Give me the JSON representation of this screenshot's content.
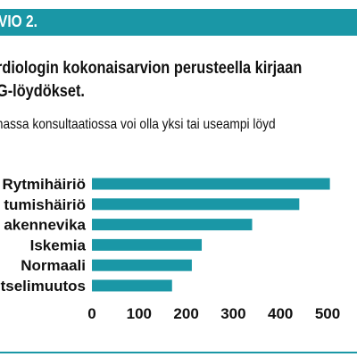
{
  "header": {
    "label": "VIO 2."
  },
  "title_lines": [
    "rdiologin kokonaisarvion perusteella kirjaan",
    "G-löydökset."
  ],
  "subtitle": "massa konsultaatiossa voi olla yksi tai useampi löyd",
  "colors": {
    "accent": "#1a97a6",
    "bar": "#1a97a6",
    "text": "#111111"
  },
  "chart_data": {
    "type": "bar",
    "orientation": "horizontal",
    "categories": [
      "Rytmihäiriö",
      "tumishäiriö",
      "akennevika",
      "Iskemia",
      "Normaali",
      "tselimuutos"
    ],
    "values": [
      505,
      440,
      340,
      233,
      212,
      170
    ],
    "xlim": [
      0,
      500
    ],
    "xticks": [
      "0",
      "100",
      "200",
      "300",
      "400",
      "500"
    ],
    "grid": false,
    "legend": "none"
  }
}
